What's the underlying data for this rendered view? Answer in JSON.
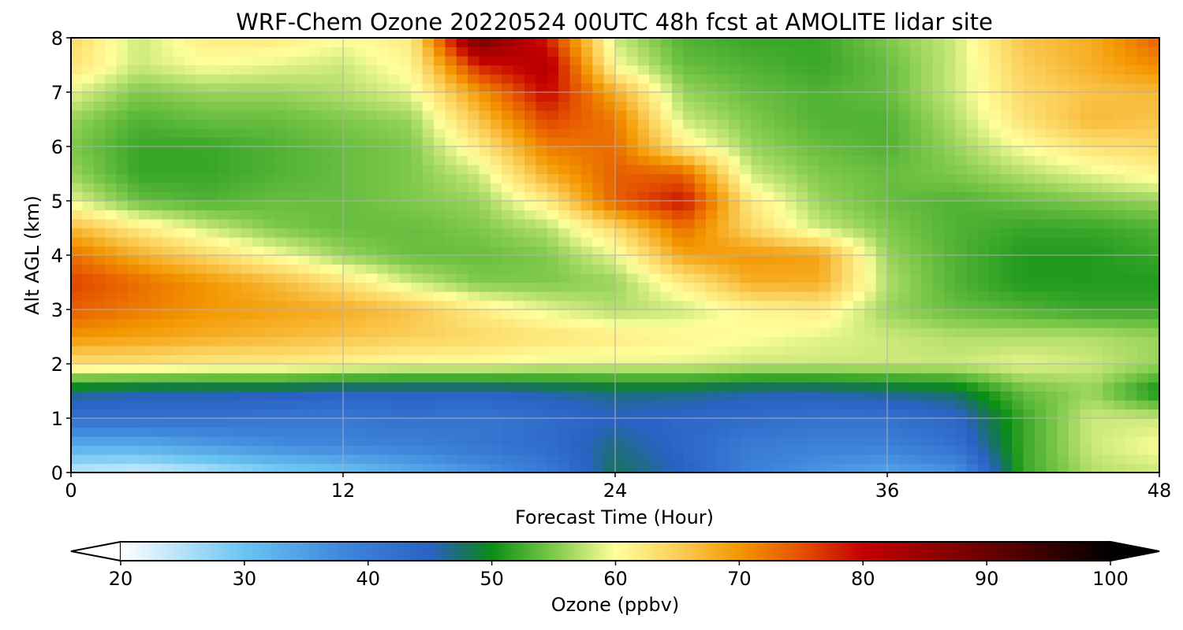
{
  "chart_data": {
    "type": "heatmap",
    "title": "WRF-Chem Ozone  20220524 00UTC 48h fcst at AMOLITE lidar site",
    "xlabel": "Forecast Time (Hour)",
    "ylabel": "Alt AGL (km)",
    "xlim": [
      0,
      48
    ],
    "ylim": [
      0,
      8
    ],
    "x_ticks": [
      "0",
      "12",
      "24",
      "36",
      "48"
    ],
    "y_ticks": [
      "0",
      "1",
      "2",
      "3",
      "4",
      "5",
      "6",
      "7",
      "8"
    ],
    "grid": true,
    "x_values_hours": [
      0,
      3,
      6,
      9,
      12,
      15,
      18,
      21,
      24,
      27,
      30,
      33,
      36,
      39,
      42,
      45,
      48
    ],
    "y_values_km": [
      0,
      0.5,
      1,
      1.5,
      2,
      2.5,
      3,
      3.5,
      4,
      4.5,
      5,
      5.5,
      6,
      6.5,
      7,
      7.5,
      8
    ],
    "z_ozone_ppbv": [
      [
        24,
        23,
        25,
        28,
        30,
        33,
        36,
        40,
        48,
        45,
        39,
        36,
        34,
        36,
        52,
        57,
        58
      ],
      [
        33,
        33,
        35,
        37,
        38,
        39,
        41,
        43,
        47,
        44,
        40,
        39,
        39,
        42,
        52,
        58,
        60
      ],
      [
        42,
        42,
        42,
        41,
        41,
        42,
        41,
        43,
        45,
        44,
        43,
        42,
        42,
        44,
        52,
        58,
        58
      ],
      [
        47,
        46,
        46,
        46,
        45,
        45,
        45,
        46,
        47,
        47,
        46,
        46,
        47,
        48,
        54,
        56,
        50
      ],
      [
        63,
        63,
        62,
        62,
        61,
        60,
        60,
        59,
        59,
        59,
        58,
        58,
        58,
        58,
        59,
        58,
        56
      ],
      [
        70,
        69,
        68,
        67,
        66,
        65,
        64,
        63,
        62,
        61,
        60,
        59,
        58,
        57,
        57,
        57,
        56
      ],
      [
        74,
        72,
        70,
        69,
        68,
        66,
        62,
        59,
        57,
        58,
        61,
        62,
        56,
        54,
        53,
        52,
        52
      ],
      [
        76,
        73,
        70,
        67,
        63,
        58,
        55,
        55,
        56,
        62,
        68,
        68,
        57,
        53,
        51,
        51,
        51
      ],
      [
        73,
        68,
        64,
        60,
        56,
        54,
        54,
        55,
        59,
        69,
        70,
        69,
        56,
        53,
        51,
        51,
        52
      ],
      [
        67,
        62,
        58,
        55,
        54,
        54,
        55,
        57,
        64,
        73,
        64,
        58,
        55,
        53,
        52,
        52,
        53
      ],
      [
        59,
        54,
        53,
        54,
        54,
        55,
        56,
        62,
        74,
        79,
        62,
        56,
        54,
        53,
        54,
        55,
        56
      ],
      [
        56,
        52,
        52,
        53,
        54,
        55,
        58,
        68,
        74,
        74,
        58,
        55,
        54,
        55,
        57,
        59,
        61
      ],
      [
        55,
        52,
        52,
        53,
        54,
        55,
        62,
        72,
        73,
        62,
        56,
        54,
        53,
        56,
        60,
        63,
        64
      ],
      [
        56,
        53,
        54,
        54,
        55,
        56,
        66,
        76,
        72,
        58,
        55,
        53,
        53,
        57,
        63,
        67,
        66
      ],
      [
        59,
        55,
        56,
        56,
        57,
        59,
        70,
        80,
        68,
        56,
        54,
        53,
        54,
        58,
        64,
        66,
        67
      ],
      [
        63,
        58,
        60,
        59,
        58,
        61,
        78,
        82,
        60,
        54,
        53,
        52,
        54,
        58,
        65,
        68,
        71
      ],
      [
        64,
        58,
        62,
        62,
        60,
        62,
        90,
        78,
        58,
        53,
        52,
        52,
        55,
        58,
        66,
        68,
        74
      ]
    ],
    "colorbar": {
      "label": "Ozone  (ppbv)",
      "min": 20,
      "max": 100,
      "ticks": [
        "20",
        "30",
        "40",
        "50",
        "60",
        "70",
        "80",
        "90",
        "100"
      ],
      "extend": "both",
      "color_stops": [
        {
          "v": 20,
          "c": "#ffffff"
        },
        {
          "v": 30,
          "c": "#6ac4f2"
        },
        {
          "v": 38,
          "c": "#3f86dc"
        },
        {
          "v": 45,
          "c": "#2a62c4"
        },
        {
          "v": 48,
          "c": "#17735a"
        },
        {
          "v": 50,
          "c": "#0a8f14"
        },
        {
          "v": 55,
          "c": "#7fc94a"
        },
        {
          "v": 60,
          "c": "#ffff9c"
        },
        {
          "v": 65,
          "c": "#fbcf5a"
        },
        {
          "v": 70,
          "c": "#f39700"
        },
        {
          "v": 75,
          "c": "#e45100"
        },
        {
          "v": 80,
          "c": "#c40000"
        },
        {
          "v": 90,
          "c": "#6a0000"
        },
        {
          "v": 100,
          "c": "#000000"
        }
      ]
    }
  }
}
